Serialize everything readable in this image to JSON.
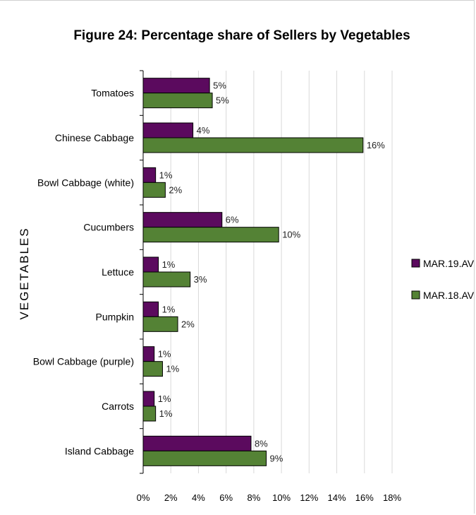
{
  "chart_data": {
    "type": "bar",
    "orientation": "horizontal",
    "title": "Figure 24: Percentage share of Sellers by Vegetables",
    "ylabel": "VEGETABLES",
    "xlabel": "",
    "categories": [
      "Tomatoes",
      "Chinese Cabbage",
      "Bowl Cabbage (white)",
      "Cucumbers",
      "Lettuce",
      "Pumpkin",
      "Bowl Cabbage (purple)",
      "Carrots",
      "Island Cabbage"
    ],
    "series": [
      {
        "name": "MAR.19.AV",
        "color": "#5b0a5e",
        "values": [
          4.8,
          3.6,
          0.9,
          5.7,
          1.1,
          1.1,
          0.8,
          0.8,
          7.8
        ],
        "labels": [
          "5%",
          "4%",
          "1%",
          "6%",
          "1%",
          "1%",
          "1%",
          "1%",
          "8%"
        ]
      },
      {
        "name": "MAR.18.AV",
        "color": "#548235",
        "values": [
          5.0,
          15.9,
          1.6,
          9.8,
          3.4,
          2.5,
          1.4,
          0.9,
          8.9
        ],
        "labels": [
          "5%",
          "16%",
          "2%",
          "10%",
          "3%",
          "2%",
          "1%",
          "1%",
          "9%"
        ]
      }
    ],
    "xlim": [
      0,
      18
    ],
    "xticks": [
      "0%",
      "2%",
      "4%",
      "6%",
      "8%",
      "10%",
      "12%",
      "14%",
      "16%",
      "18%"
    ],
    "grid": true,
    "legend_position": "right"
  }
}
